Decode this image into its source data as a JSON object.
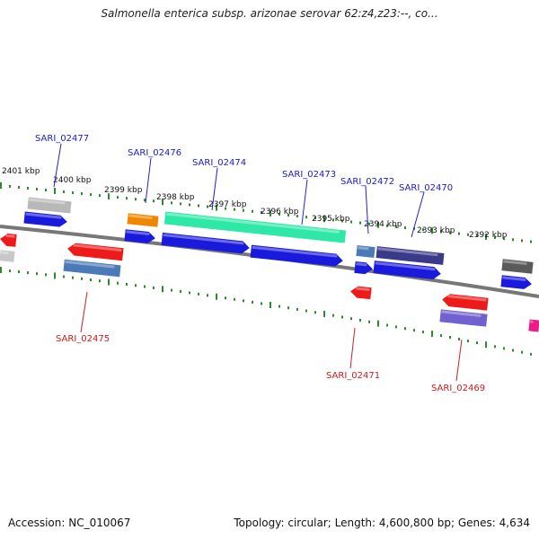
{
  "title": "Salmonella enterica subsp. arizonae serovar 62:z4,z23:--, co...",
  "footer": {
    "accession": "Accession: NC_010067",
    "summary": "Topology: circular; Length: 4,600,800 bp; Genes: 4,634"
  },
  "colors": {
    "backbone": "#7a7a7a",
    "ticks": "#2f8a2f",
    "forward_label": "#1a1acc",
    "reverse_label": "#cc1a1a"
  },
  "tick_labels": [
    "2401 kbp",
    "2400 kbp",
    "2399 kbp",
    "2398 kbp",
    "2397 kbp",
    "2396 kbp",
    "2395 kbp",
    "2394 kbp",
    "2393 kbp",
    "2392 kbp"
  ],
  "gene_labels": {
    "forward": [
      "SARI_02477",
      "SARI_02476",
      "SARI_02474",
      "SARI_02473",
      "SARI_02472",
      "SARI_02470"
    ],
    "reverse": [
      "SARI_02475",
      "SARI_02471",
      "SARI_02469"
    ]
  }
}
